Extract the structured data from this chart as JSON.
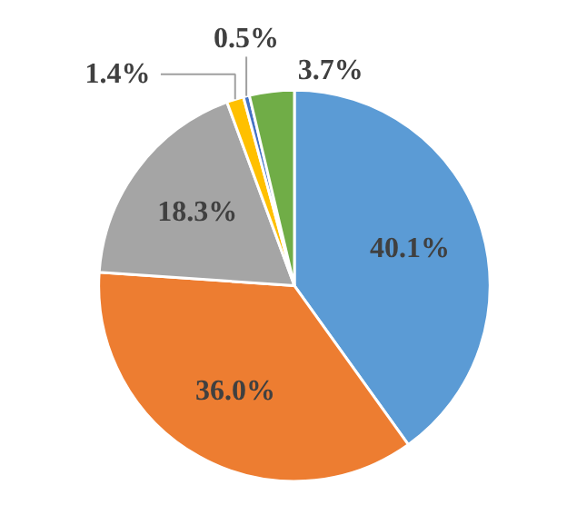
{
  "chart_data": {
    "type": "pie",
    "categories": [
      null,
      null,
      null,
      null,
      null,
      null
    ],
    "values": [
      40.1,
      36.0,
      18.3,
      1.4,
      0.5,
      3.7
    ],
    "colors": [
      "#5b9bd5",
      "#ed7d31",
      "#a5a5a5",
      "#ffc000",
      "#4472c4",
      "#70ad47"
    ],
    "value_labels": [
      "40.1%",
      "36.0%",
      "18.3%",
      "1.4%",
      "0.5%",
      "3.7%"
    ]
  }
}
